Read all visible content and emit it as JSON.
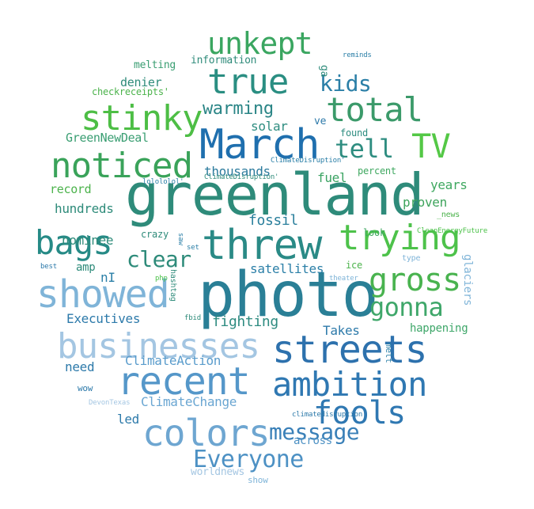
{
  "words": [
    {
      "text": "photo",
      "color": "#2a7f96"
    },
    {
      "text": "greenland",
      "color": "#2e8b7a"
    },
    {
      "text": "March",
      "color": "#1f6fae"
    },
    {
      "text": "threw",
      "color": "#2a8a86"
    },
    {
      "text": "showed",
      "color": "#7fb4d8"
    },
    {
      "text": "streets",
      "color": "#2d71ad"
    },
    {
      "text": "businesses",
      "color": "#a4c6e2"
    },
    {
      "text": "recent",
      "color": "#5597c9"
    },
    {
      "text": "colors",
      "color": "#6ea6d1"
    },
    {
      "text": "ambition",
      "color": "#2f78b2"
    },
    {
      "text": "fools",
      "color": "#2f78b2"
    },
    {
      "text": "noticed",
      "color": "#3aa35a"
    },
    {
      "text": "stinky",
      "color": "#4dbe45"
    },
    {
      "text": "true",
      "color": "#2a8e82"
    },
    {
      "text": "total",
      "color": "#3b9a6a"
    },
    {
      "text": "trying",
      "color": "#4dc24a"
    },
    {
      "text": "gross",
      "color": "#49b34f"
    },
    {
      "text": "bags",
      "color": "#268a86"
    },
    {
      "text": "unkept",
      "color": "#3aa660"
    },
    {
      "text": "TV",
      "color": "#54c846"
    },
    {
      "text": "kids",
      "color": "#2b7fa7"
    },
    {
      "text": "tell",
      "color": "#2e8d80"
    },
    {
      "text": "gonna",
      "color": "#3fa76a"
    },
    {
      "text": "Everyone",
      "color": "#4d91c4"
    },
    {
      "text": "message",
      "color": "#3a80b8"
    },
    {
      "text": "clear",
      "color": "#2e8b7a"
    },
    {
      "text": "warming",
      "color": "#2a8586"
    },
    {
      "text": "fighting",
      "color": "#2e8b80"
    },
    {
      "text": "Executives",
      "color": "#2d7aaa"
    },
    {
      "text": "Takes",
      "color": "#2d7aaa"
    },
    {
      "text": "fossil",
      "color": "#2a7f9c"
    },
    {
      "text": "thousands",
      "color": "#2a7a9c"
    },
    {
      "text": "hundreds",
      "color": "#2e8b7a"
    },
    {
      "text": "nominee",
      "color": "#2e8b7a"
    },
    {
      "text": "ClimateAction",
      "color": "#5a9ccc"
    },
    {
      "text": "ClimateChange",
      "color": "#6aa6d2"
    },
    {
      "text": "satellites",
      "color": "#2b7fa7"
    },
    {
      "text": "GreenNewDeal",
      "color": "#3a9e72"
    },
    {
      "text": "proven",
      "color": "#3ea45c"
    },
    {
      "text": "years",
      "color": "#3fa860"
    },
    {
      "text": "fuel",
      "color": "#3aa362"
    },
    {
      "text": "record",
      "color": "#4cb34c"
    },
    {
      "text": "denier",
      "color": "#2e8b7a"
    },
    {
      "text": "solar",
      "color": "#2e8d80"
    },
    {
      "text": "happening",
      "color": "#3fa76a"
    },
    {
      "text": "need",
      "color": "#2d7aaa"
    },
    {
      "text": "across",
      "color": "#4d91c4"
    },
    {
      "text": "led",
      "color": "#2d7aaa"
    },
    {
      "text": "amp",
      "color": "#2e8b7a"
    },
    {
      "text": "nI",
      "color": "#2b7fa7"
    },
    {
      "text": "information",
      "color": "#2e8b7a"
    },
    {
      "text": "melting",
      "color": "#3a9e72"
    },
    {
      "text": "checkreceipts'",
      "color": "#4cb34c"
    },
    {
      "text": "found",
      "color": "#2e8d80"
    },
    {
      "text": "percent",
      "color": "#3fa860"
    },
    {
      "text": "look",
      "color": "#3fa860"
    },
    {
      "text": "ice",
      "color": "#4cb34c"
    },
    {
      "text": "crazy",
      "color": "#2e8b7a"
    },
    {
      "text": "show",
      "color": "#7fb4d8"
    },
    {
      "text": "worldnews",
      "color": "#a4c6e2"
    },
    {
      "text": "_news",
      "color": "#4cb34c"
    },
    {
      "text": "wow",
      "color": "#2d7aaa"
    },
    {
      "text": "ve",
      "color": "#2d7aaa"
    },
    {
      "text": "ga",
      "color": "#2e8b7a"
    },
    {
      "text": "melt",
      "color": "#2b7fa7"
    },
    {
      "text": "glaciers",
      "color": "#7fb4d8"
    },
    {
      "text": "hashtag",
      "color": "#2e8b7a"
    },
    {
      "text": "saw",
      "color": "#2b7fa7"
    },
    {
      "text": "reminds",
      "color": "#2b7fa7"
    },
    {
      "text": "ClimateDisruption'",
      "color": "#2b7fa7"
    },
    {
      "text": "lolololol'",
      "color": "#2b7fa7"
    },
    {
      "text": "ClimateDisruption'",
      "color": "#2e8b7a"
    },
    {
      "text": "climatedisruption",
      "color": "#2d7aaa"
    },
    {
      "text": "CleanEnergyFuture",
      "color": "#4cc24a"
    },
    {
      "text": "set",
      "color": "#2b7fa7"
    },
    {
      "text": "type",
      "color": "#7fb4d8"
    },
    {
      "text": "theater",
      "color": "#7fb4d8"
    },
    {
      "text": "best",
      "color": "#2d7aaa"
    },
    {
      "text": "php",
      "color": "#4cc24a"
    },
    {
      "text": "fbid",
      "color": "#2e8b7a"
    },
    {
      "text": "DevonTexas",
      "color": "#a4c6e2"
    }
  ]
}
